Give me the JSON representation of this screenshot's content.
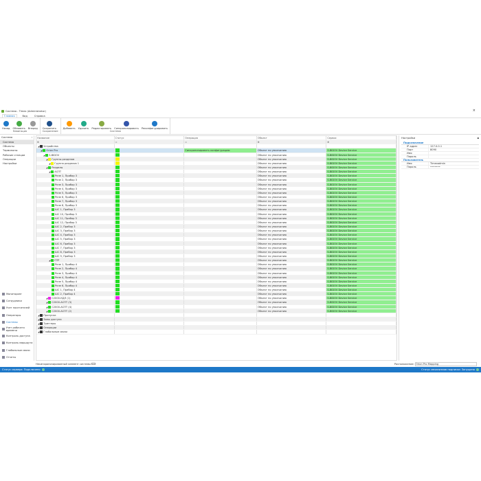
{
  "window": {
    "title": "Система - Timex (Administrator)"
  },
  "menu": [
    "Главная",
    "Вид",
    "Справка"
  ],
  "ribbon": {
    "groups": [
      {
        "label": "Навигация",
        "buttons": [
          "Назад",
          "Обновить",
          "Вперед"
        ]
      },
      {
        "label": "Сохранение",
        "buttons": [
          "Сохранить"
        ]
      },
      {
        "label": "Система",
        "buttons": [
          "Добавить",
          "Удалить",
          "Редактировать",
          "Синхронизировать",
          "Реконфигурировать"
        ]
      }
    ]
  },
  "sidebar": {
    "title": "Система",
    "items": [
      "Система",
      "Объекты",
      "Терминалы",
      "Рабочие станции",
      "Операции",
      "Настройки"
    ],
    "nav": [
      "Мониторинг",
      "Сотрудники",
      "Учет посетителей",
      "Операторы",
      "Системы",
      "Учет рабочего времени",
      "Контроль доступа",
      "Контроль маршрута",
      "Глобальные связи",
      "Отчеты"
    ]
  },
  "grid": {
    "columns": [
      "Название",
      "Статус",
      "Операция",
      "Объект",
      "Сервис"
    ],
    "rows": [
      {
        "name": "Устройства",
        "level": 0
      },
      {
        "name": "Orion Pro",
        "level": 1,
        "status": "green",
        "op": "Синхронизировать конфигурацию",
        "obj": "Объект по умолчанию",
        "svc": "S-BIDOV Device Service",
        "sel": true
      },
      {
        "name": "S-BIDOV",
        "level": 2,
        "status": "green",
        "obj": "Объект по умолчанию",
        "svc": "S-BIDOV Device Service"
      },
      {
        "name": "Группы разделов",
        "level": 3,
        "status": "yellow",
        "obj": "Объект по умолчанию",
        "svc": "S-BIDOV Device Service"
      },
      {
        "name": "Группа разделов 1",
        "level": 4,
        "status": "yellow",
        "obj": "Объект по умолчанию",
        "svc": "S-BIDOV Device Service"
      },
      {
        "name": "Разделы",
        "level": 3,
        "status": "green",
        "obj": "Объект по умолчанию",
        "svc": "S-BIDOV Device Service"
      },
      {
        "name": "АСПТ",
        "level": 4,
        "status": "green",
        "obj": "Объект по умолчанию",
        "svc": "S-BIDOV Device Service"
      },
      {
        "name": "Реле 1, Прибор 3",
        "level": 5,
        "status": "green",
        "obj": "Объект по умолчанию",
        "svc": "S-BIDOV Device Service"
      },
      {
        "name": "Реле 2, Прибор 3",
        "level": 5,
        "status": "green",
        "obj": "Объект по умолчанию",
        "svc": "S-BIDOV Device Service"
      },
      {
        "name": "Реле 3, Прибор 3",
        "level": 5,
        "status": "green",
        "obj": "Объект по умолчанию",
        "svc": "S-BIDOV Device Service"
      },
      {
        "name": "Реле 4, Прибор 3",
        "level": 5,
        "status": "green",
        "obj": "Объект по умолчанию",
        "svc": "S-BIDOV Device Service"
      },
      {
        "name": "Реле 5, Прибор 3",
        "level": 5,
        "status": "green",
        "obj": "Объект по умолчанию",
        "svc": "S-BIDOV Device Service"
      },
      {
        "name": "Реле 6, Прибор 3",
        "level": 5,
        "status": "green",
        "obj": "Объект по умолчанию",
        "svc": "S-BIDOV Device Service"
      },
      {
        "name": "Реле 7, Прибор 3",
        "level": 5,
        "status": "green",
        "obj": "Объект по умолчанию",
        "svc": "S-BIDOV Device Service"
      },
      {
        "name": "Реле 8, Прибор 3",
        "level": 5,
        "status": "green",
        "obj": "Объект по умолчанию",
        "svc": "S-BIDOV Device Service"
      },
      {
        "name": "ШС 1, Прибор 3",
        "level": 5,
        "status": "green",
        "obj": "Объект по умолчанию",
        "svc": "S-BIDOV Device Service"
      },
      {
        "name": "ШС 10, Прибор 3",
        "level": 5,
        "status": "green",
        "obj": "Объект по умолчанию",
        "svc": "S-BIDOV Device Service"
      },
      {
        "name": "ШС 11, Прибор 3",
        "level": 5,
        "status": "green",
        "obj": "Объект по умолчанию",
        "svc": "S-BIDOV Device Service"
      },
      {
        "name": "ШС 12, Прибор 3",
        "level": 5,
        "status": "green",
        "obj": "Объект по умолчанию",
        "svc": "S-BIDOV Device Service"
      },
      {
        "name": "ШС 2, Прибор 3",
        "level": 5,
        "status": "green",
        "obj": "Объект по умолчанию",
        "svc": "S-BIDOV Device Service"
      },
      {
        "name": "ШС 3, Прибор 3",
        "level": 5,
        "status": "green",
        "obj": "Объект по умолчанию",
        "svc": "S-BIDOV Device Service"
      },
      {
        "name": "ШС 4, Прибор 3",
        "level": 5,
        "status": "green",
        "obj": "Объект по умолчанию",
        "svc": "S-BIDOV Device Service"
      },
      {
        "name": "ШС 5, Прибор 3",
        "level": 5,
        "status": "green",
        "obj": "Объект по умолчанию",
        "svc": "S-BIDOV Device Service"
      },
      {
        "name": "ШС 6, Прибор 3",
        "level": 5,
        "status": "green",
        "obj": "Объект по умолчанию",
        "svc": "S-BIDOV Device Service"
      },
      {
        "name": "ШС 7, Прибор 3",
        "level": 5,
        "status": "green",
        "obj": "Объект по умолчанию",
        "svc": "S-BIDOV Device Service"
      },
      {
        "name": "ШС 8, Прибор 3",
        "level": 5,
        "status": "green",
        "obj": "Объект по умолчанию",
        "svc": "S-BIDOV Device Service"
      },
      {
        "name": "ШС 9, Прибор 3",
        "level": 5,
        "status": "green",
        "obj": "Объект по умолчанию",
        "svc": "S-BIDOV Device Service"
      },
      {
        "name": "ПТР",
        "level": 4,
        "status": "green",
        "obj": "Объект по умолчанию",
        "svc": "S-BIDOV Device Service"
      },
      {
        "name": "Реле 1, Прибор 4",
        "level": 5,
        "status": "green",
        "obj": "Объект по умолчанию",
        "svc": "S-BIDOV Device Service"
      },
      {
        "name": "Реле 2, Прибор 4",
        "level": 5,
        "status": "green",
        "obj": "Объект по умолчанию",
        "svc": "S-BIDOV Device Service"
      },
      {
        "name": "Реле 3, Прибор 4",
        "level": 5,
        "status": "green",
        "obj": "Объект по умолчанию",
        "svc": "S-BIDOV Device Service"
      },
      {
        "name": "Реле 4, Прибор 4",
        "level": 5,
        "status": "green",
        "obj": "Объект по умолчанию",
        "svc": "S-BIDOV Device Service"
      },
      {
        "name": "Реле 5, Прибор 4",
        "level": 5,
        "status": "green",
        "obj": "Объект по умолчанию",
        "svc": "S-BIDOV Device Service"
      },
      {
        "name": "Реле 6, Прибор 4",
        "level": 5,
        "status": "green",
        "obj": "Объект по умолчанию",
        "svc": "S-BIDOV Device Service"
      },
      {
        "name": "ШС 1, Прибор 4",
        "level": 5,
        "status": "green",
        "obj": "Объект по умолчанию",
        "svc": "S-BIDOV Device Service"
      },
      {
        "name": "ШС 2, Прибор 4",
        "level": 5,
        "status": "green",
        "obj": "Объект по умолчанию",
        "svc": "S-BIDOV Device Service"
      },
      {
        "name": "С2000-КДЛ (1)",
        "level": 3,
        "status": "magenta",
        "obj": "Объект по умолчанию",
        "svc": "S-BIDOV Device Service"
      },
      {
        "name": "С2000-АСПТ (3)",
        "level": 3,
        "status": "green",
        "obj": "Объект по умолчанию",
        "svc": "S-BIDOV Device Service"
      },
      {
        "name": "С2000-АСПТ (4)",
        "level": 3,
        "status": "green",
        "obj": "Объект по умолчанию",
        "svc": "S-BIDOV Device Service"
      },
      {
        "name": "С2000-АСПТ (2)",
        "level": 3,
        "status": "green",
        "obj": "Объект по умолчанию",
        "svc": "S-BIDOV Device Service"
      },
      {
        "name": "Пропуски",
        "level": 0
      },
      {
        "name": "Зоны доступа",
        "level": 0
      },
      {
        "name": "Триггеры",
        "level": 0
      },
      {
        "name": "Операции",
        "level": 0
      },
      {
        "name": "Глобальные связи",
        "level": 0
      }
    ]
  },
  "settings": {
    "title": "Настройки",
    "groups": [
      {
        "title": "Подключение",
        "props": [
          [
            "IP адрес",
            "127.0.0.1"
          ],
          [
            "Порт",
            "8090"
          ],
          [
            "Имя",
            ""
          ],
          [
            "Пароль",
            ""
          ]
        ]
      },
      {
        "title": "Пользователь",
        "props": [
          [
            "Имя",
            "Timexadmin"
          ],
          [
            "Пароль",
            "•••••••"
          ]
        ]
      }
    ]
  },
  "bottom": {
    "legend": "Несинхронизированный элемент системы",
    "location_label": "Расположение:",
    "location_value": "Orion Pro Mapping"
  },
  "statusbar": {
    "left": "Статус сервера: Подключено",
    "right": "Статус механизмов подписки: Запущено"
  },
  "colors": {
    "accent": "#1e78c8",
    "green": "#22dd22",
    "lightgreen": "#90ee90",
    "yellow": "#f5f500",
    "magenta": "#ee22ee"
  }
}
